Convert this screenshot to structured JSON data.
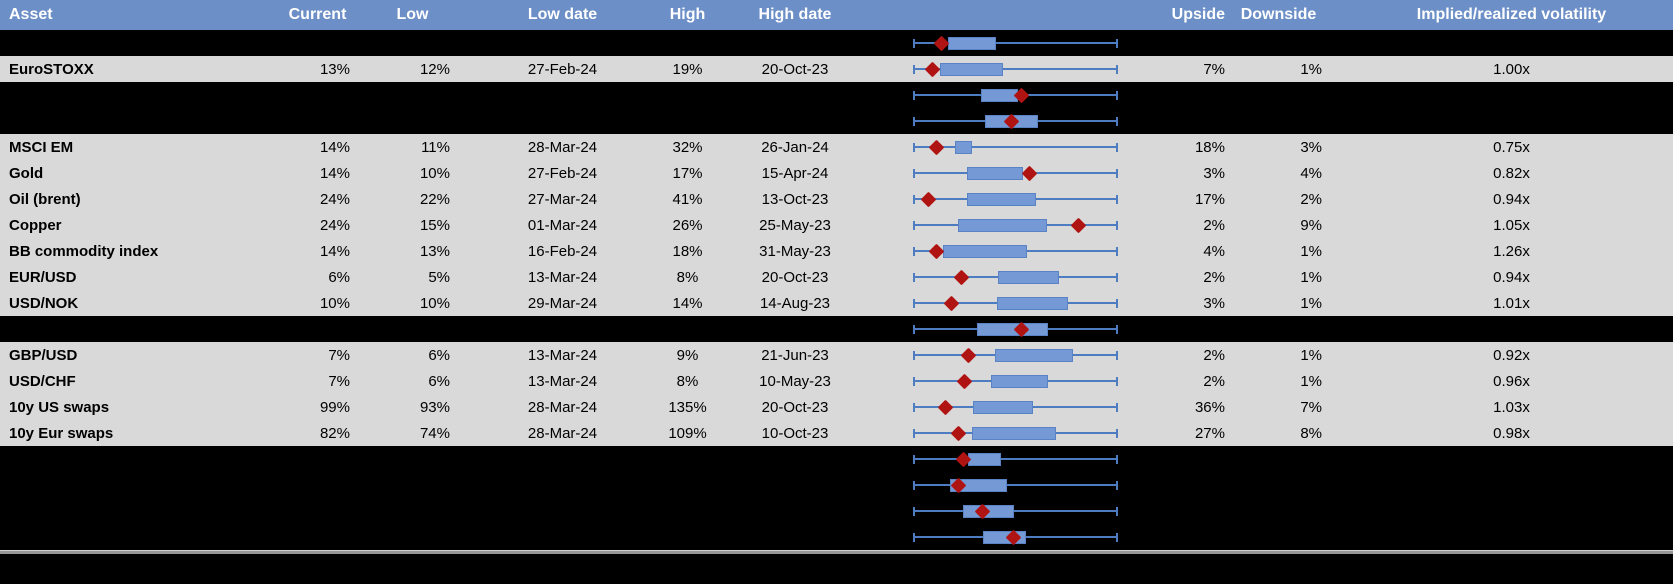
{
  "header": {
    "columns": [
      "Asset",
      "Current",
      "Low",
      "Low date",
      "High",
      "High date",
      "",
      "Upside",
      "Downside",
      "Implied/realized volatility"
    ]
  },
  "colors": {
    "header_bg": "#6c8fc7",
    "header_text": "#ffffff",
    "row_bg": "#d9d9d9",
    "hidden_bg": "#000000",
    "whisker": "#4d7cc0",
    "box_fill": "#7499d4",
    "box_border": "#5a83c6",
    "diamond": "#b01412",
    "divider": "#969696"
  },
  "rows": [
    {
      "kind": "hidden",
      "plot": {
        "whisker_start": 0,
        "whisker_end": 1,
        "box_start": 0.17,
        "box_end": 0.405,
        "diamond": 0.137
      }
    },
    {
      "kind": "data",
      "cells": {
        "asset": "EuroSTOXX",
        "current": "13%",
        "low": "12%",
        "low_date": "27-Feb-24",
        "high": "19%",
        "high_date": "20-Oct-23",
        "upside": "7%",
        "downside": "1%",
        "impl_real": "1.00x"
      },
      "plot": {
        "whisker_start": 0,
        "whisker_end": 1,
        "box_start": 0.132,
        "box_end": 0.44,
        "diamond": 0.093
      }
    },
    {
      "kind": "hidden",
      "plot": {
        "whisker_start": 0,
        "whisker_end": 1,
        "box_start": 0.33,
        "box_end": 0.51,
        "diamond": 0.53
      }
    },
    {
      "kind": "hidden",
      "plot": {
        "whisker_start": 0,
        "whisker_end": 1,
        "box_start": 0.35,
        "box_end": 0.61,
        "diamond": 0.48
      }
    },
    {
      "kind": "data",
      "cells": {
        "asset": "MSCI EM",
        "current": "14%",
        "low": "11%",
        "low_date": "28-Mar-24",
        "high": "32%",
        "high_date": "26-Jan-24",
        "upside": "18%",
        "downside": "3%",
        "impl_real": "0.75x"
      },
      "plot": {
        "whisker_start": 0,
        "whisker_end": 1,
        "box_start": 0.205,
        "box_end": 0.29,
        "diamond": 0.117
      }
    },
    {
      "kind": "data",
      "cells": {
        "asset": "Gold",
        "current": "14%",
        "low": "10%",
        "low_date": "27-Feb-24",
        "high": "17%",
        "high_date": "15-Apr-24",
        "upside": "3%",
        "downside": "4%",
        "impl_real": "0.82x"
      },
      "plot": {
        "whisker_start": 0,
        "whisker_end": 1,
        "box_start": 0.263,
        "box_end": 0.537,
        "diamond": 0.57
      }
    },
    {
      "kind": "data",
      "cells": {
        "asset": "Oil (brent)",
        "current": "24%",
        "low": "22%",
        "low_date": "27-Mar-24",
        "high": "41%",
        "high_date": "13-Oct-23",
        "upside": "17%",
        "downside": "2%",
        "impl_real": "0.94x"
      },
      "plot": {
        "whisker_start": 0,
        "whisker_end": 1,
        "box_start": 0.263,
        "box_end": 0.6,
        "diamond": 0.078
      }
    },
    {
      "kind": "data",
      "cells": {
        "asset": "Copper",
        "current": "24%",
        "low": "15%",
        "low_date": "01-Mar-24",
        "high": "26%",
        "high_date": "25-May-23",
        "upside": "2%",
        "downside": "9%",
        "impl_real": "1.05x"
      },
      "plot": {
        "whisker_start": 0,
        "whisker_end": 1,
        "box_start": 0.22,
        "box_end": 0.654,
        "diamond": 0.805
      }
    },
    {
      "kind": "data",
      "cells": {
        "asset": "BB commodity index",
        "current": "14%",
        "low": "13%",
        "low_date": "16-Feb-24",
        "high": "18%",
        "high_date": "31-May-23",
        "upside": "4%",
        "downside": "1%",
        "impl_real": "1.26x"
      },
      "plot": {
        "whisker_start": 0,
        "whisker_end": 1,
        "box_start": 0.146,
        "box_end": 0.556,
        "diamond": 0.117
      }
    },
    {
      "kind": "data",
      "cells": {
        "asset": "EUR/USD",
        "current": "6%",
        "low": "5%",
        "low_date": "13-Mar-24",
        "high": "8%",
        "high_date": "20-Oct-23",
        "upside": "2%",
        "downside": "1%",
        "impl_real": "0.94x"
      },
      "plot": {
        "whisker_start": 0,
        "whisker_end": 1,
        "box_start": 0.415,
        "box_end": 0.712,
        "diamond": 0.239
      }
    },
    {
      "kind": "data",
      "cells": {
        "asset": "USD/NOK",
        "current": "10%",
        "low": "10%",
        "low_date": "29-Mar-24",
        "high": "14%",
        "high_date": "14-Aug-23",
        "upside": "3%",
        "downside": "1%",
        "impl_real": "1.01x"
      },
      "plot": {
        "whisker_start": 0,
        "whisker_end": 1,
        "box_start": 0.41,
        "box_end": 0.756,
        "diamond": 0.19
      }
    },
    {
      "kind": "hidden",
      "plot": {
        "whisker_start": 0,
        "whisker_end": 1,
        "box_start": 0.31,
        "box_end": 0.66,
        "diamond": 0.53
      }
    },
    {
      "kind": "data",
      "cells": {
        "asset": "GBP/USD",
        "current": "7%",
        "low": "6%",
        "low_date": "13-Mar-24",
        "high": "9%",
        "high_date": "21-Jun-23",
        "upside": "2%",
        "downside": "1%",
        "impl_real": "0.92x"
      },
      "plot": {
        "whisker_start": 0,
        "whisker_end": 1,
        "box_start": 0.4,
        "box_end": 0.78,
        "diamond": 0.27
      }
    },
    {
      "kind": "data",
      "cells": {
        "asset": "USD/CHF",
        "current": "7%",
        "low": "6%",
        "low_date": "13-Mar-24",
        "high": "8%",
        "high_date": "10-May-23",
        "upside": "2%",
        "downside": "1%",
        "impl_real": "0.96x"
      },
      "plot": {
        "whisker_start": 0,
        "whisker_end": 1,
        "box_start": 0.38,
        "box_end": 0.66,
        "diamond": 0.25
      }
    },
    {
      "kind": "data",
      "cells": {
        "asset": "10y US swaps",
        "current": "99%",
        "low": "93%",
        "low_date": "28-Mar-24",
        "high": "135%",
        "high_date": "20-Oct-23",
        "upside": "36%",
        "downside": "7%",
        "impl_real": "1.03x"
      },
      "plot": {
        "whisker_start": 0,
        "whisker_end": 1,
        "box_start": 0.295,
        "box_end": 0.585,
        "diamond": 0.16
      }
    },
    {
      "kind": "data",
      "cells": {
        "asset": "10y Eur swaps",
        "current": "82%",
        "low": "74%",
        "low_date": "28-Mar-24",
        "high": "109%",
        "high_date": "10-Oct-23",
        "upside": "27%",
        "downside": "8%",
        "impl_real": "0.98x"
      },
      "plot": {
        "whisker_start": 0,
        "whisker_end": 1,
        "box_start": 0.29,
        "box_end": 0.7,
        "diamond": 0.22
      }
    },
    {
      "kind": "hidden",
      "plot": {
        "whisker_start": 0,
        "whisker_end": 1,
        "box_start": 0.268,
        "box_end": 0.43,
        "diamond": 0.244
      }
    },
    {
      "kind": "hidden",
      "plot": {
        "whisker_start": 0,
        "whisker_end": 1,
        "box_start": 0.18,
        "box_end": 0.458,
        "diamond": 0.224
      }
    },
    {
      "kind": "hidden",
      "plot": {
        "whisker_start": 0,
        "whisker_end": 1,
        "box_start": 0.244,
        "box_end": 0.493,
        "diamond": 0.34
      }
    },
    {
      "kind": "hidden",
      "plot": {
        "whisker_start": 0,
        "whisker_end": 1,
        "box_start": 0.34,
        "box_end": 0.55,
        "diamond": 0.49
      }
    }
  ],
  "chart_data": {
    "type": "table",
    "note_columns": [
      "Asset",
      "Current",
      "Low",
      "Low date",
      "High",
      "High date",
      "Upside",
      "Downside",
      "Implied/realized volatility"
    ],
    "embedded_plot": "box-whisker per row; whiskers span low-high range, red diamond marks current level; positions stored per row as fractions 0-1 of plot track"
  }
}
